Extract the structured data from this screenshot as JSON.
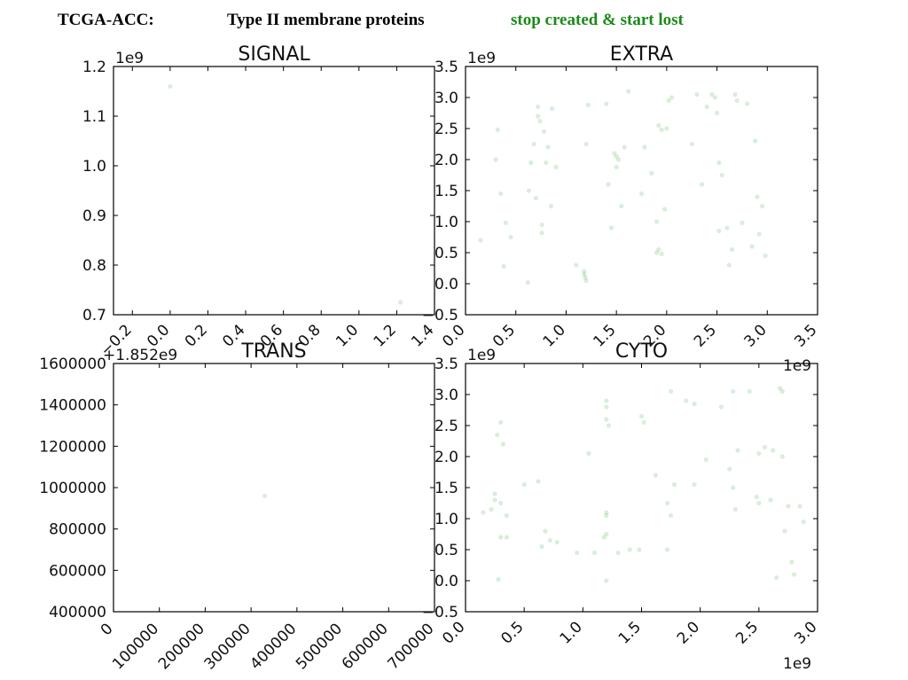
{
  "header": {
    "dataset": "TCGA-ACC:",
    "protein_class": "Type II membrane proteins",
    "mutation_class": "stop created & start lost",
    "mutation_color": "#1a8a1a"
  },
  "point_color": "#2ca02c",
  "chart_data": [
    {
      "type": "scatter",
      "title": "SIGNAL",
      "xlim": [
        -0.3,
        1.4
      ],
      "ylim": [
        0.7,
        1.2
      ],
      "xticks": [
        -0.2,
        0.0,
        0.2,
        0.4,
        0.6,
        0.8,
        1.0,
        1.2,
        1.4
      ],
      "xtick_labels": [
        "−0.2",
        "0.0",
        "0.2",
        "0.4",
        "0.6",
        "0.8",
        "1.0",
        "1.2",
        "1.4"
      ],
      "yticks": [
        0.7,
        0.8,
        0.9,
        1.0,
        1.1,
        1.2
      ],
      "ytick_labels": [
        "0.7",
        "0.8",
        "0.9",
        "1.0",
        "1.1",
        "1.2"
      ],
      "x_offset_label": "",
      "y_offset_label": "1e9",
      "points": [
        [
          0.0,
          1.16
        ],
        [
          1.22,
          0.725
        ]
      ]
    },
    {
      "type": "scatter",
      "title": "EXTRA",
      "xlim": [
        0.0,
        3.5
      ],
      "ylim": [
        -0.5,
        3.5
      ],
      "xticks": [
        0.0,
        0.5,
        1.0,
        1.5,
        2.0,
        2.5,
        3.0,
        3.5
      ],
      "xtick_labels": [
        "0.0",
        "0.5",
        "1.0",
        "1.5",
        "2.0",
        "2.5",
        "3.0",
        "3.5"
      ],
      "yticks": [
        -0.5,
        0.0,
        0.5,
        1.0,
        1.5,
        2.0,
        2.5,
        3.0,
        3.5
      ],
      "ytick_labels": [
        "−0.5",
        "0.0",
        "0.5",
        "1.0",
        "1.5",
        "2.0",
        "2.5",
        "3.0",
        "3.5"
      ],
      "x_offset_label": "1e9",
      "y_offset_label": "1e9",
      "points": [
        [
          0.15,
          0.7
        ],
        [
          0.3,
          2.0
        ],
        [
          0.32,
          2.48
        ],
        [
          0.35,
          1.45
        ],
        [
          0.38,
          0.28
        ],
        [
          0.4,
          0.98
        ],
        [
          0.45,
          0.75
        ],
        [
          0.62,
          0.02
        ],
        [
          0.63,
          1.5
        ],
        [
          0.65,
          1.95
        ],
        [
          0.68,
          2.25
        ],
        [
          0.7,
          1.38
        ],
        [
          0.72,
          2.85
        ],
        [
          0.72,
          2.7
        ],
        [
          0.74,
          2.62
        ],
        [
          0.76,
          0.95
        ],
        [
          0.76,
          0.82
        ],
        [
          0.78,
          2.45
        ],
        [
          0.8,
          1.95
        ],
        [
          0.82,
          2.2
        ],
        [
          0.85,
          1.25
        ],
        [
          0.86,
          2.82
        ],
        [
          0.9,
          1.88
        ],
        [
          1.1,
          0.3
        ],
        [
          1.18,
          0.2
        ],
        [
          1.18,
          0.15
        ],
        [
          1.19,
          0.1
        ],
        [
          1.2,
          2.25
        ],
        [
          1.2,
          0.05
        ],
        [
          1.22,
          2.88
        ],
        [
          1.4,
          2.9
        ],
        [
          1.42,
          1.6
        ],
        [
          1.45,
          0.9
        ],
        [
          1.48,
          2.1
        ],
        [
          1.5,
          2.05
        ],
        [
          1.5,
          1.88
        ],
        [
          1.52,
          2.0
        ],
        [
          1.55,
          1.25
        ],
        [
          1.58,
          2.2
        ],
        [
          1.62,
          3.1
        ],
        [
          1.75,
          1.45
        ],
        [
          1.78,
          2.2
        ],
        [
          1.85,
          1.78
        ],
        [
          1.9,
          0.5
        ],
        [
          1.9,
          1.0
        ],
        [
          1.92,
          2.55
        ],
        [
          1.92,
          0.55
        ],
        [
          1.95,
          2.48
        ],
        [
          1.95,
          0.48
        ],
        [
          1.98,
          1.2
        ],
        [
          2.0,
          2.5
        ],
        [
          2.02,
          2.95
        ],
        [
          2.05,
          3.0
        ],
        [
          2.25,
          2.25
        ],
        [
          2.3,
          3.05
        ],
        [
          2.35,
          1.6
        ],
        [
          2.4,
          2.85
        ],
        [
          2.45,
          3.05
        ],
        [
          2.48,
          3.0
        ],
        [
          2.5,
          2.75
        ],
        [
          2.52,
          0.85
        ],
        [
          2.52,
          1.95
        ],
        [
          2.55,
          1.75
        ],
        [
          2.6,
          0.9
        ],
        [
          2.62,
          0.3
        ],
        [
          2.65,
          0.55
        ],
        [
          2.68,
          3.05
        ],
        [
          2.7,
          2.95
        ],
        [
          2.75,
          0.98
        ],
        [
          2.8,
          2.9
        ],
        [
          2.85,
          0.6
        ],
        [
          2.88,
          2.3
        ],
        [
          2.9,
          1.4
        ],
        [
          2.92,
          0.8
        ],
        [
          2.95,
          1.25
        ],
        [
          2.98,
          0.45
        ]
      ]
    },
    {
      "type": "scatter",
      "title": "TRANS",
      "xlim": [
        0,
        700000
      ],
      "ylim": [
        400000,
        1600000
      ],
      "xticks": [
        0,
        100000,
        200000,
        300000,
        400000,
        500000,
        600000,
        700000
      ],
      "xtick_labels": [
        "0",
        "100000",
        "200000",
        "300000",
        "400000",
        "500000",
        "600000",
        "700000"
      ],
      "yticks": [
        400000,
        600000,
        800000,
        1000000,
        1200000,
        1400000,
        1600000
      ],
      "ytick_labels": [
        "400000",
        "600000",
        "800000",
        "1000000",
        "1200000",
        "1400000",
        "1600000"
      ],
      "x_offset_label": "",
      "y_offset_label": "+1.852e9",
      "points": [
        [
          330000,
          960000
        ]
      ]
    },
    {
      "type": "scatter",
      "title": "CYTO",
      "xlim": [
        0.0,
        3.0
      ],
      "ylim": [
        -0.5,
        3.5
      ],
      "xticks": [
        0.0,
        0.5,
        1.0,
        1.5,
        2.0,
        2.5,
        3.0
      ],
      "xtick_labels": [
        "0.0",
        "0.5",
        "1.0",
        "1.5",
        "2.0",
        "2.5",
        "3.0"
      ],
      "yticks": [
        -0.5,
        0.0,
        0.5,
        1.0,
        1.5,
        2.0,
        2.5,
        3.0,
        3.5
      ],
      "ytick_labels": [
        "−0.5",
        "0.0",
        "0.5",
        "1.0",
        "1.5",
        "2.0",
        "2.5",
        "3.0",
        "3.5"
      ],
      "x_offset_label": "1e9",
      "y_offset_label": "1e9",
      "points": [
        [
          0.15,
          1.1
        ],
        [
          0.22,
          1.15
        ],
        [
          0.25,
          1.3
        ],
        [
          0.25,
          1.4
        ],
        [
          0.27,
          2.35
        ],
        [
          0.28,
          0.02
        ],
        [
          0.3,
          1.25
        ],
        [
          0.3,
          0.7
        ],
        [
          0.3,
          2.55
        ],
        [
          0.32,
          2.2
        ],
        [
          0.35,
          1.05
        ],
        [
          0.35,
          0.7
        ],
        [
          0.5,
          1.55
        ],
        [
          0.62,
          1.6
        ],
        [
          0.65,
          0.55
        ],
        [
          0.68,
          0.8
        ],
        [
          0.72,
          0.65
        ],
        [
          0.78,
          0.62
        ],
        [
          0.95,
          0.45
        ],
        [
          1.05,
          2.05
        ],
        [
          1.1,
          0.45
        ],
        [
          1.18,
          0.7
        ],
        [
          1.2,
          2.9
        ],
        [
          1.2,
          2.8
        ],
        [
          1.2,
          2.6
        ],
        [
          1.2,
          1.1
        ],
        [
          1.2,
          1.05
        ],
        [
          1.2,
          0.75
        ],
        [
          1.2,
          0.0
        ],
        [
          1.22,
          2.5
        ],
        [
          1.3,
          0.45
        ],
        [
          1.4,
          0.5
        ],
        [
          1.48,
          0.5
        ],
        [
          1.5,
          2.65
        ],
        [
          1.52,
          2.55
        ],
        [
          1.62,
          1.7
        ],
        [
          1.72,
          0.5
        ],
        [
          1.72,
          1.25
        ],
        [
          1.75,
          3.05
        ],
        [
          1.75,
          1.05
        ],
        [
          1.78,
          1.55
        ],
        [
          1.88,
          2.9
        ],
        [
          1.95,
          2.85
        ],
        [
          1.95,
          1.55
        ],
        [
          2.05,
          1.95
        ],
        [
          2.18,
          2.8
        ],
        [
          2.25,
          1.8
        ],
        [
          2.28,
          1.5
        ],
        [
          2.28,
          3.05
        ],
        [
          2.3,
          1.15
        ],
        [
          2.32,
          2.1
        ],
        [
          2.42,
          3.05
        ],
        [
          2.48,
          1.35
        ],
        [
          2.5,
          1.25
        ],
        [
          2.5,
          2.05
        ],
        [
          2.55,
          2.15
        ],
        [
          2.6,
          1.3
        ],
        [
          2.62,
          2.1
        ],
        [
          2.65,
          0.05
        ],
        [
          2.68,
          3.1
        ],
        [
          2.7,
          3.05
        ],
        [
          2.7,
          2.0
        ],
        [
          2.72,
          0.8
        ],
        [
          2.75,
          1.2
        ],
        [
          2.78,
          0.3
        ],
        [
          2.8,
          0.1
        ],
        [
          2.85,
          1.2
        ],
        [
          2.88,
          0.95
        ]
      ]
    }
  ]
}
